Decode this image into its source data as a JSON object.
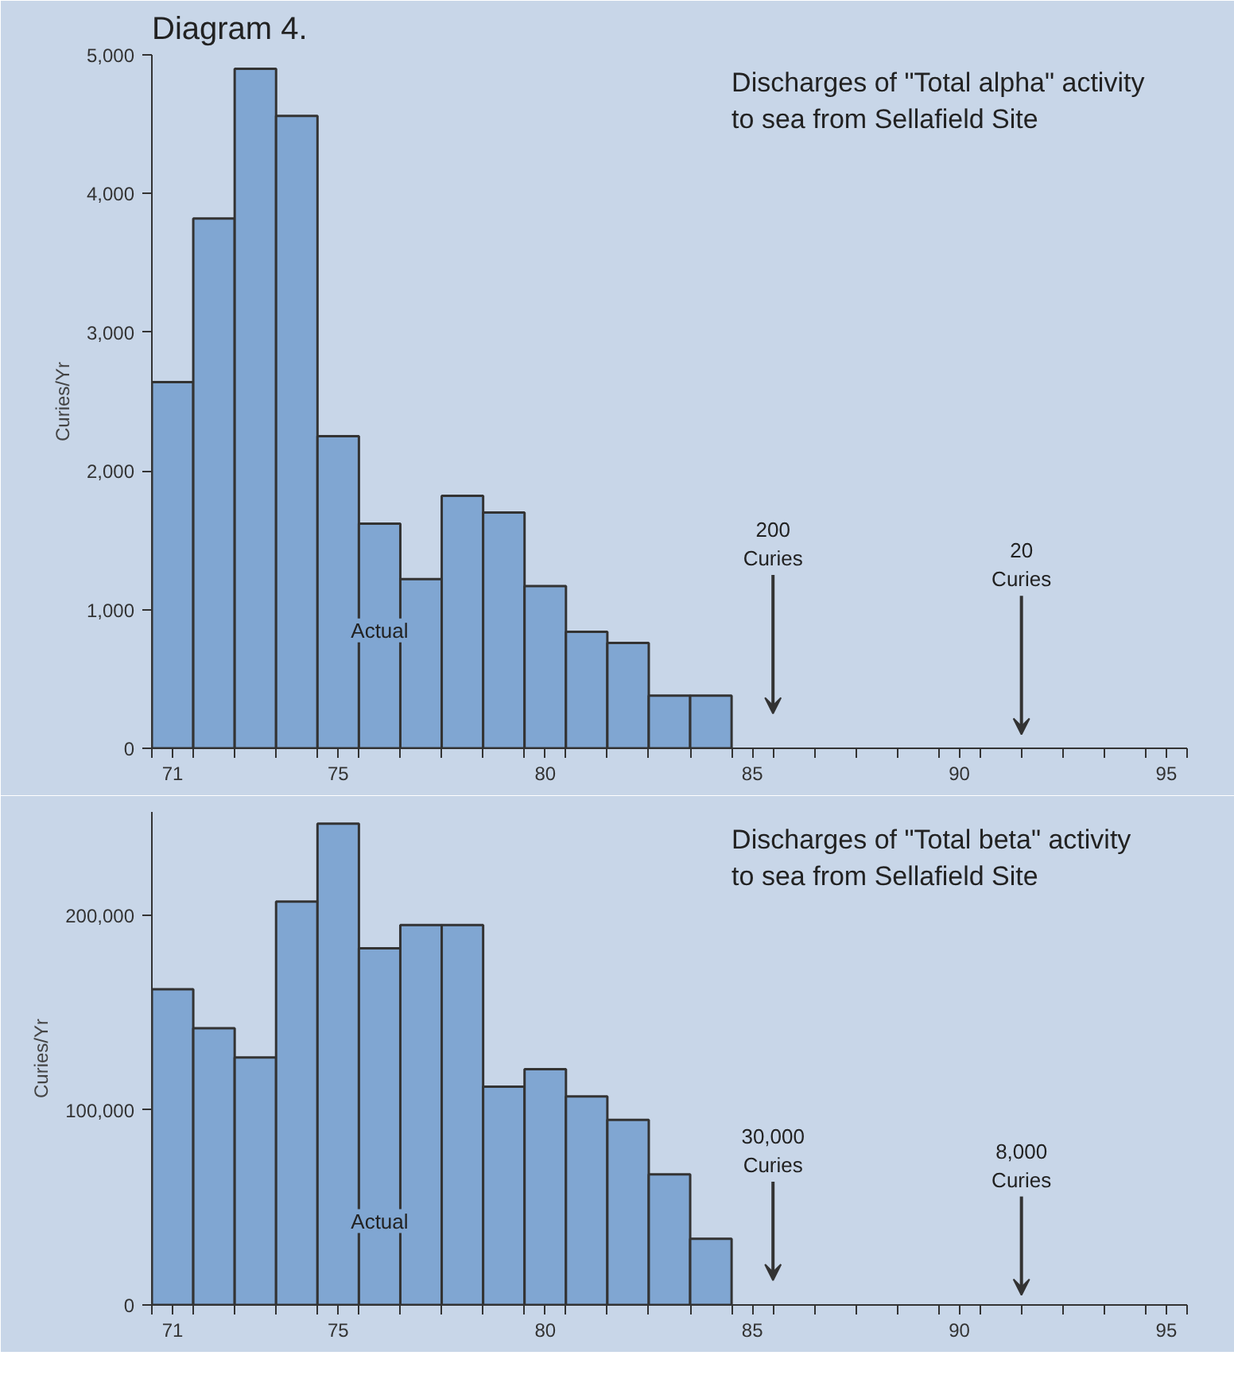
{
  "chart_data": [
    {
      "type": "histogram",
      "title": "Diagram 4.",
      "subtitle": "Discharges of \"Total alpha\" activity\nto sea from Sellafield Site",
      "ylabel": "Curies/Yr",
      "bins": [
        70.5,
        71.5,
        72.5,
        73.5,
        74.5,
        75.5,
        76.5,
        77.5,
        78.5,
        79.5,
        80.5,
        81.5,
        82.5,
        83.5,
        84.5
      ],
      "values": [
        2640,
        3820,
        4900,
        4560,
        2250,
        1620,
        1220,
        1820,
        1700,
        1170,
        840,
        760,
        380,
        380
      ],
      "color": "#80a6d2",
      "xlim": [
        70.5,
        95.5
      ],
      "xticks": [
        71,
        75,
        80,
        85,
        90,
        95,
        {
          "value": 70.5,
          "label": null
        },
        {
          "value": 71.5,
          "label": null
        },
        {
          "value": 72.5,
          "label": null
        },
        {
          "value": 73.5,
          "label": null
        },
        {
          "value": 74.5,
          "label": null
        },
        {
          "value": 75.5,
          "label": null
        },
        {
          "value": 76.5,
          "label": null
        },
        {
          "value": 77.5,
          "label": null
        },
        {
          "value": 78.5,
          "label": null
        },
        {
          "value": 79.5,
          "label": null
        },
        {
          "value": 80.5,
          "label": null
        },
        {
          "value": 81.5,
          "label": null
        },
        {
          "value": 82.5,
          "label": null
        },
        {
          "value": 83.5,
          "label": null
        },
        {
          "value": 84.5,
          "label": null
        },
        {
          "value": 85.5,
          "label": null
        },
        {
          "value": 86.5,
          "label": null
        },
        {
          "value": 87.5,
          "label": null
        },
        {
          "value": 88.5,
          "label": null
        },
        {
          "value": 89.5,
          "label": null
        },
        {
          "value": 90.5,
          "label": null
        },
        {
          "value": 91.5,
          "label": null
        },
        {
          "value": 92.5,
          "label": null
        },
        {
          "value": 93.5,
          "label": null
        },
        {
          "value": 94.5,
          "label": null
        },
        {
          "value": 95.5,
          "label": null
        }
      ],
      "ylim": [
        0,
        5000
      ],
      "yticks": [
        0,
        {
          "value": 1000,
          "label": "1,000"
        },
        {
          "value": 2000,
          "label": "2,000"
        },
        {
          "value": 3000,
          "label": "3,000"
        },
        {
          "value": 4000,
          "label": "4,000"
        },
        {
          "value": 5000,
          "label": "5,000"
        }
      ],
      "grid": false,
      "annotations": [
        "Actual",
        "200\nCuries",
        "20\nCuries"
      ]
    },
    {
      "type": "histogram",
      "subtitle": "Discharges of \"Total beta\" activity\nto sea from Sellafield Site",
      "ylabel": "Curies/Yr",
      "bins": [
        70.5,
        71.5,
        72.5,
        73.5,
        74.5,
        75.5,
        76.5,
        77.5,
        78.5,
        79.5,
        80.5,
        81.5,
        82.5,
        83.5,
        84.5
      ],
      "values": [
        162000,
        142000,
        127000,
        207000,
        247000,
        183000,
        195000,
        195000,
        112000,
        121000,
        107000,
        95000,
        67000,
        34000
      ],
      "color": "#80a6d2",
      "xlim": [
        70.5,
        95.5
      ],
      "xticks": [
        71,
        75,
        80,
        85,
        90,
        95,
        {
          "value": 70.5,
          "label": null
        },
        {
          "value": 71.5,
          "label": null
        },
        {
          "value": 72.5,
          "label": null
        },
        {
          "value": 73.5,
          "label": null
        },
        {
          "value": 74.5,
          "label": null
        },
        {
          "value": 75.5,
          "label": null
        },
        {
          "value": 76.5,
          "label": null
        },
        {
          "value": 77.5,
          "label": null
        },
        {
          "value": 78.5,
          "label": null
        },
        {
          "value": 79.5,
          "label": null
        },
        {
          "value": 80.5,
          "label": null
        },
        {
          "value": 81.5,
          "label": null
        },
        {
          "value": 82.5,
          "label": null
        },
        {
          "value": 83.5,
          "label": null
        },
        {
          "value": 84.5,
          "label": null
        },
        {
          "value": 85.5,
          "label": null
        },
        {
          "value": 86.5,
          "label": null
        },
        {
          "value": 87.5,
          "label": null
        },
        {
          "value": 88.5,
          "label": null
        },
        {
          "value": 89.5,
          "label": null
        },
        {
          "value": 90.5,
          "label": null
        },
        {
          "value": 91.5,
          "label": null
        },
        {
          "value": 92.5,
          "label": null
        },
        {
          "value": 93.5,
          "label": null
        },
        {
          "value": 94.5,
          "label": null
        },
        {
          "value": 95.5,
          "label": null
        }
      ],
      "ylim": [
        0,
        253000
      ],
      "yticks": [
        0,
        {
          "value": 100000,
          "label": "100,000"
        },
        {
          "value": 200000,
          "label": "200,000"
        }
      ],
      "grid": false,
      "annotations": [
        "Actual",
        "30,000\nCuries",
        "8,000\nCuries"
      ]
    }
  ]
}
